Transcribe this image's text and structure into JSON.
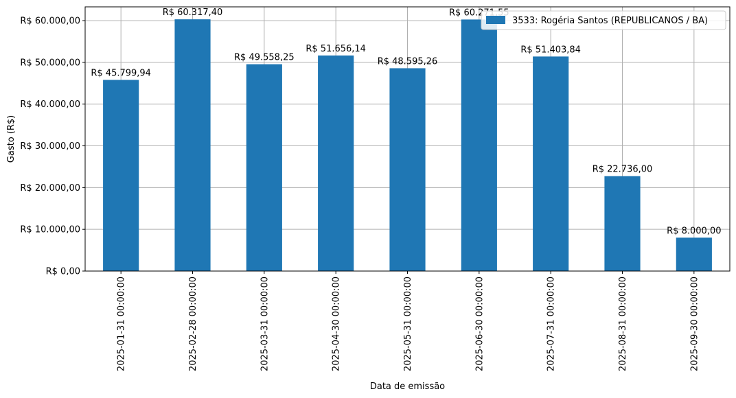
{
  "chart_data": {
    "type": "bar",
    "categories": [
      "2025-01-31 00:00:00",
      "2025-02-28 00:00:00",
      "2025-03-31 00:00:00",
      "2025-04-30 00:00:00",
      "2025-05-31 00:00:00",
      "2025-06-30 00:00:00",
      "2025-07-31 00:00:00",
      "2025-08-31 00:00:00",
      "2025-09-30 00:00:00"
    ],
    "series": [
      {
        "name": "3533: Rogéria Santos (REPUBLICANOS / BA)",
        "values": [
          45799.94,
          60317.4,
          49558.25,
          51656.14,
          48595.26,
          60271.55,
          51403.84,
          22736.0,
          8000.0
        ],
        "labels": [
          "R$ 45.799,94",
          "R$ 60.317,40",
          "R$ 49.558,25",
          "R$ 51.656,14",
          "R$ 48.595,26",
          "R$ 60.271,55",
          "R$ 51.403,84",
          "R$ 22.736,00",
          "R$ 8.000,00"
        ],
        "color": "#1f77b4"
      }
    ],
    "xlabel": "Data de emissão",
    "ylabel": "Gasto (R$)",
    "ylim": [
      0,
      63300
    ],
    "yticks": [
      0,
      10000,
      20000,
      30000,
      40000,
      50000,
      60000
    ],
    "ytick_labels": [
      "R$ 0,00",
      "R$ 10.000,00",
      "R$ 20.000,00",
      "R$ 30.000,00",
      "R$ 40.000,00",
      "R$ 50.000,00",
      "R$ 60.000,00"
    ],
    "grid": true,
    "legend": "top-right"
  }
}
